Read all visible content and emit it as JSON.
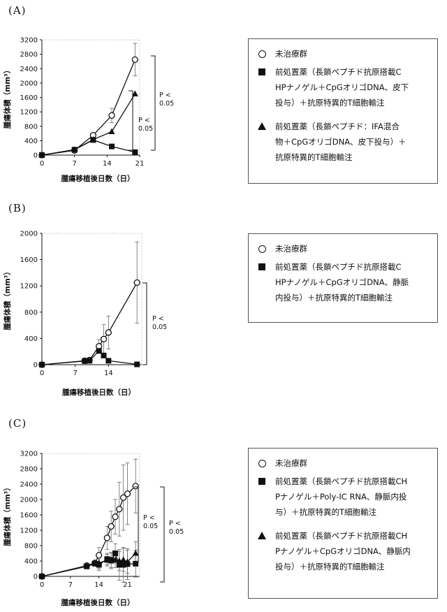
{
  "panels": [
    {
      "label": "(A)",
      "legend": [
        {
          "marker": "circle",
          "text": "未治療群"
        },
        {
          "marker": "square",
          "text": "前処置薬（長鎖ペプチド抗原搭載C\nHPナノゲル＋CpGオリゴDNA、皮下\n投与）＋抗原特異的T細胞輸注"
        },
        {
          "marker": "triangle",
          "text": "前処置薬（長鎖ペプチド：IFA混合\n物＋CpGオリゴDNA、皮下投与）＋\n抗原特異的T細胞輸注"
        }
      ]
    },
    {
      "label": "(B)",
      "legend": [
        {
          "marker": "circle",
          "text": "未治療群"
        },
        {
          "marker": "square",
          "text": "前処置薬（長鎖ペプチド抗原搭載C\nHPナノゲル＋CpGオリゴDNA、静脈\n内投与）＋抗原特異的T細胞輸注"
        }
      ]
    },
    {
      "label": "(C)",
      "legend": [
        {
          "marker": "circle",
          "text": "未治療群"
        },
        {
          "marker": "square",
          "text": "前処置薬（長鎖ペプチド抗原搭載CH\nPナノゲル＋Poly-IC RNA、静脈内投\n与）＋抗原特異的T細胞輸注"
        },
        {
          "marker": "triangle",
          "text": "前処置薬（長鎖ペプチド抗原搭載CH\nPナノゲル＋CpGオリゴDNA、静脈内\n投与）＋抗原特異的T細胞輸注"
        }
      ]
    }
  ],
  "chart_data": [
    {
      "type": "line",
      "xlabel": "腫瘍移植後日数（日）",
      "ylabel": "腫瘍体積（mm³）",
      "xlim": [
        0,
        21
      ],
      "ylim": [
        0,
        3200
      ],
      "xticks": [
        "0",
        "7",
        "14",
        "21"
      ],
      "yticks": [
        "0",
        "400",
        "800",
        "1200",
        "1600",
        "2000",
        "2400",
        "2800",
        "3200"
      ],
      "series": [
        {
          "marker": "circle",
          "x": [
            0,
            7,
            11,
            15,
            20
          ],
          "y": [
            0,
            130,
            550,
            1100,
            2650
          ],
          "err": [
            0,
            30,
            60,
            200,
            450
          ]
        },
        {
          "marker": "square",
          "x": [
            0,
            7,
            11,
            15,
            20
          ],
          "y": [
            0,
            150,
            420,
            240,
            80
          ],
          "err": [
            0,
            0,
            0,
            0,
            0
          ]
        },
        {
          "marker": "triangle",
          "x": [
            0,
            7,
            11,
            15,
            20
          ],
          "y": [
            0,
            150,
            430,
            650,
            1700
          ],
          "err": [
            0,
            0,
            0,
            0,
            0
          ]
        }
      ],
      "annotations": [
        {
          "text": "P <\n0.05"
        },
        {
          "text": "P <\n0.05"
        }
      ]
    },
    {
      "type": "line",
      "xlabel": "腫瘍移植後日数（日）",
      "ylabel": "腫瘍体積（mm³）",
      "xlim": [
        0,
        21
      ],
      "ylim": [
        0,
        2000
      ],
      "xticks": [
        "0",
        "7",
        "14"
      ],
      "yticks": [
        "0",
        "400",
        "800",
        "1200",
        "1600",
        "2000"
      ],
      "series": [
        {
          "marker": "circle",
          "x": [
            0,
            9,
            10,
            12,
            13,
            14,
            20
          ],
          "y": [
            0,
            60,
            70,
            280,
            390,
            490,
            1250
          ],
          "err": [
            0,
            0,
            0,
            100,
            220,
            250,
            620
          ]
        },
        {
          "marker": "square",
          "x": [
            0,
            9,
            10,
            12,
            13,
            14,
            20
          ],
          "y": [
            0,
            55,
            60,
            210,
            140,
            60,
            5
          ],
          "err": [
            0,
            0,
            0,
            0,
            0,
            0,
            0
          ]
        }
      ],
      "annotations": [
        {
          "text": "P <\n0.05"
        }
      ]
    },
    {
      "type": "line",
      "xlabel": "腫瘍移植後日数（日）",
      "ylabel": "腫瘍体積（mm³）",
      "xlim": [
        0,
        24
      ],
      "ylim": [
        0,
        3200
      ],
      "xticks": [
        "0",
        "7",
        "14",
        "21"
      ],
      "yticks": [
        "0",
        "400",
        "800",
        "1200",
        "1600",
        "2000",
        "2400",
        "2800",
        "3200"
      ],
      "series": [
        {
          "marker": "circle",
          "x": [
            0,
            11,
            13,
            14,
            16,
            17,
            18,
            19,
            20,
            21,
            23
          ],
          "y": [
            0,
            280,
            350,
            550,
            1000,
            1300,
            1550,
            1750,
            2050,
            2150,
            2350
          ],
          "err": [
            0,
            0,
            0,
            200,
            300,
            400,
            450,
            700,
            850,
            800,
            700
          ]
        },
        {
          "marker": "square",
          "x": [
            0,
            11,
            13,
            14,
            16,
            17,
            18,
            19,
            20,
            21,
            23
          ],
          "y": [
            0,
            260,
            330,
            300,
            450,
            430,
            600,
            300,
            300,
            320,
            330
          ],
          "err": [
            0,
            0,
            0,
            150,
            150,
            200,
            250,
            400,
            450,
            400,
            350
          ]
        },
        {
          "marker": "triangle",
          "x": [
            0,
            11,
            13,
            14,
            16,
            17,
            18,
            19,
            20,
            21,
            23
          ],
          "y": [
            0,
            270,
            340,
            350,
            420,
            400,
            430,
            400,
            430,
            380,
            600
          ],
          "err": [
            0,
            0,
            0,
            150,
            150,
            200,
            200,
            250,
            300,
            300,
            300
          ]
        }
      ],
      "annotations": [
        {
          "text": "P <\n0.05"
        },
        {
          "text": "P <\n0.05"
        }
      ]
    }
  ]
}
